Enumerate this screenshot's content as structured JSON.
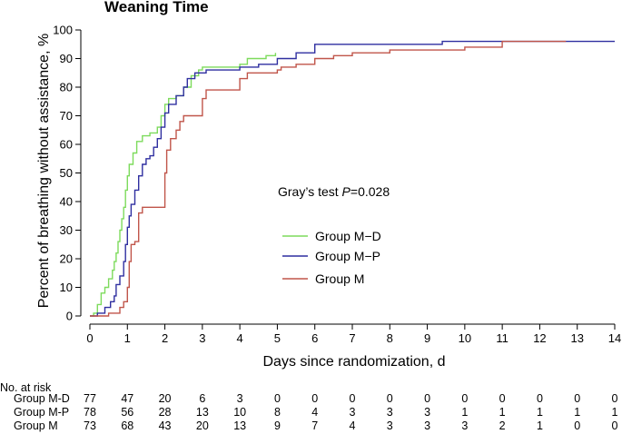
{
  "chart_data": {
    "type": "line",
    "subtype": "step",
    "title": "Weaning  Time",
    "xlabel": "Days since randomization, d",
    "ylabel": "Percent of breathing without assistance, %",
    "xlim": [
      0,
      14
    ],
    "ylim": [
      0,
      100
    ],
    "x_ticks": [
      0,
      1,
      2,
      3,
      4,
      5,
      6,
      7,
      8,
      9,
      10,
      11,
      12,
      13,
      14
    ],
    "y_ticks": [
      0,
      10,
      20,
      30,
      40,
      50,
      60,
      70,
      80,
      90,
      100
    ],
    "grid": false,
    "legend_placement": "center-right",
    "annotation": {
      "prefix": "Gray’s test ",
      "stat": "P",
      "value": "=0.028"
    },
    "series": [
      {
        "name": "Group M−D",
        "color": "#7ddb5c",
        "points": [
          [
            0,
            0
          ],
          [
            0.1,
            1
          ],
          [
            0.2,
            4
          ],
          [
            0.3,
            8
          ],
          [
            0.4,
            10
          ],
          [
            0.5,
            13
          ],
          [
            0.6,
            16
          ],
          [
            0.65,
            19
          ],
          [
            0.7,
            22
          ],
          [
            0.75,
            26
          ],
          [
            0.8,
            30
          ],
          [
            0.85,
            34
          ],
          [
            0.9,
            38
          ],
          [
            0.95,
            44
          ],
          [
            1.0,
            49
          ],
          [
            1.05,
            53
          ],
          [
            1.15,
            57
          ],
          [
            1.25,
            61
          ],
          [
            1.4,
            63
          ],
          [
            1.6,
            64
          ],
          [
            1.8,
            66
          ],
          [
            1.9,
            70
          ],
          [
            2.0,
            74
          ],
          [
            2.1,
            76
          ],
          [
            2.3,
            77
          ],
          [
            2.5,
            80
          ],
          [
            2.7,
            84
          ],
          [
            2.9,
            86
          ],
          [
            3.0,
            87
          ],
          [
            4.0,
            88
          ],
          [
            4.2,
            90
          ],
          [
            4.7,
            91
          ],
          [
            4.95,
            92
          ]
        ]
      },
      {
        "name": "Group M−P",
        "color": "#2f2fa0",
        "points": [
          [
            0,
            0
          ],
          [
            0.2,
            1
          ],
          [
            0.4,
            3
          ],
          [
            0.55,
            5
          ],
          [
            0.65,
            7
          ],
          [
            0.7,
            11
          ],
          [
            0.8,
            14
          ],
          [
            0.9,
            19
          ],
          [
            0.95,
            25
          ],
          [
            1.0,
            31
          ],
          [
            1.05,
            35
          ],
          [
            1.1,
            39
          ],
          [
            1.2,
            44
          ],
          [
            1.3,
            49
          ],
          [
            1.4,
            53
          ],
          [
            1.5,
            55
          ],
          [
            1.6,
            56
          ],
          [
            1.7,
            59
          ],
          [
            1.8,
            62
          ],
          [
            1.9,
            66
          ],
          [
            2.0,
            71
          ],
          [
            2.1,
            74
          ],
          [
            2.3,
            77
          ],
          [
            2.5,
            80
          ],
          [
            2.6,
            83
          ],
          [
            2.8,
            85
          ],
          [
            3.1,
            86
          ],
          [
            4.0,
            87
          ],
          [
            4.5,
            88
          ],
          [
            5.0,
            90
          ],
          [
            5.5,
            92
          ],
          [
            6.0,
            95
          ],
          [
            9.4,
            96
          ],
          [
            14,
            96
          ]
        ]
      },
      {
        "name": "Group M",
        "color": "#c0554a",
        "points": [
          [
            0,
            0
          ],
          [
            0.5,
            1
          ],
          [
            0.8,
            3
          ],
          [
            0.9,
            5
          ],
          [
            1.0,
            10
          ],
          [
            1.05,
            19
          ],
          [
            1.1,
            25
          ],
          [
            1.2,
            26
          ],
          [
            1.3,
            36
          ],
          [
            1.4,
            38
          ],
          [
            1.95,
            38
          ],
          [
            2.0,
            50
          ],
          [
            2.05,
            58
          ],
          [
            2.15,
            62
          ],
          [
            2.3,
            65
          ],
          [
            2.4,
            68
          ],
          [
            2.5,
            70
          ],
          [
            3.0,
            76
          ],
          [
            3.1,
            79
          ],
          [
            4.0,
            83
          ],
          [
            4.2,
            85
          ],
          [
            5.0,
            86
          ],
          [
            5.1,
            87
          ],
          [
            5.5,
            88
          ],
          [
            6.0,
            90
          ],
          [
            6.5,
            91
          ],
          [
            7.0,
            92
          ],
          [
            8.0,
            93
          ],
          [
            10.0,
            94
          ],
          [
            11.0,
            96
          ],
          [
            12.7,
            96
          ]
        ]
      }
    ]
  },
  "risk_table": {
    "header": "No. at risk",
    "rows": [
      {
        "label": "Group M-D",
        "values": [
          "77",
          "47",
          "20",
          "6",
          "3",
          "0",
          "0",
          "0",
          "0",
          "0",
          "0",
          "0",
          "0",
          "0",
          "0"
        ]
      },
      {
        "label": "Group M-P",
        "values": [
          "78",
          "56",
          "28",
          "13",
          "10",
          "8",
          "4",
          "3",
          "3",
          "3",
          "1",
          "1",
          "1",
          "1",
          "1"
        ]
      },
      {
        "label": "Group M",
        "values": [
          "73",
          "68",
          "43",
          "20",
          "13",
          "9",
          "7",
          "4",
          "3",
          "3",
          "3",
          "2",
          "1",
          "0",
          "0"
        ]
      }
    ]
  }
}
